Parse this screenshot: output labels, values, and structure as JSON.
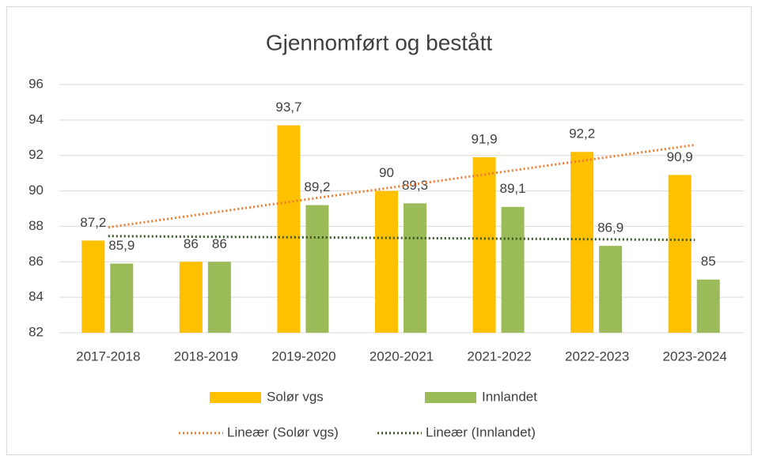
{
  "chart_data": {
    "type": "bar",
    "title": "Gjennomført og bestått",
    "categories": [
      "2017-2018",
      "2018-2019",
      "2019-2020",
      "2020-2021",
      "2021-2022",
      "2022-2023",
      "2023-2024"
    ],
    "series": [
      {
        "name": "Solør vgs",
        "color": "#ffc000",
        "values": [
          87.2,
          86,
          93.7,
          90,
          91.9,
          92.2,
          90.9
        ],
        "value_labels": [
          "87,2",
          "86",
          "93,7",
          "90",
          "91,9",
          "92,2",
          "90,9"
        ],
        "trendline": "linear",
        "trendline_label": "Lineær (Solør vgs)",
        "trendline_color": "#ed7d31"
      },
      {
        "name": "Innlandet",
        "color": "#9bbb59",
        "values": [
          85.9,
          86,
          89.2,
          89.3,
          89.1,
          86.9,
          85
        ],
        "value_labels": [
          "85,9",
          "86",
          "89,2",
          "89,3",
          "89,1",
          "86,9",
          "85"
        ],
        "trendline": "linear",
        "trendline_label": "Lineær (Innlandet)",
        "trendline_color": "#375623"
      }
    ],
    "ylim": [
      82,
      96
    ],
    "yticks": [
      82,
      84,
      86,
      88,
      90,
      92,
      94,
      96
    ],
    "grid": true,
    "legend": "bottom"
  }
}
